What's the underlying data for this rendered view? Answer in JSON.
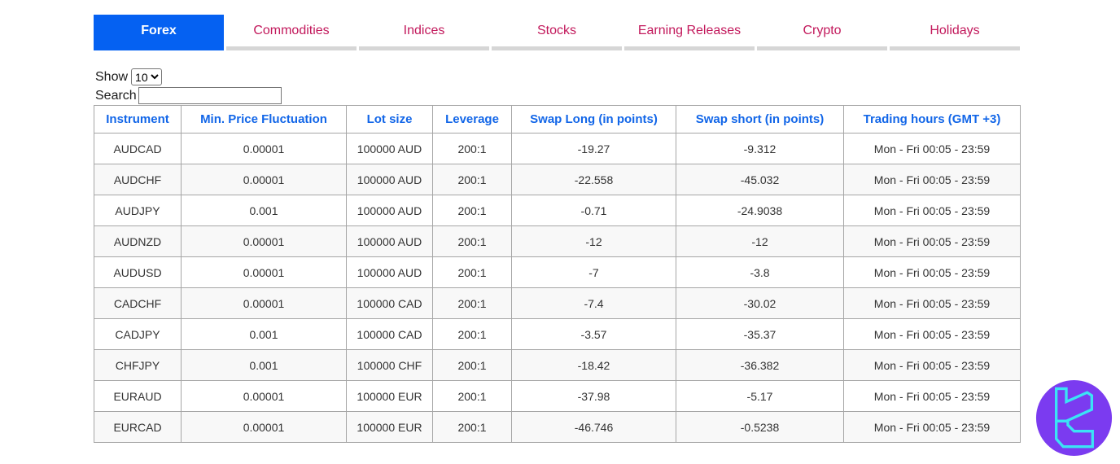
{
  "tabs": {
    "items": [
      {
        "label": "Forex",
        "active": true
      },
      {
        "label": "Commodities",
        "active": false
      },
      {
        "label": "Indices",
        "active": false
      },
      {
        "label": "Stocks",
        "active": false
      },
      {
        "label": "Earning Releases",
        "active": false
      },
      {
        "label": "Crypto",
        "active": false
      },
      {
        "label": "Holidays",
        "active": false
      }
    ]
  },
  "controls": {
    "show_label": "Show",
    "show_selected": "10",
    "search_label": "Search",
    "search_value": ""
  },
  "table": {
    "headers": [
      "Instrument",
      "Min. Price Fluctuation",
      "Lot size",
      "Leverage",
      "Swap Long (in points)",
      "Swap short (in points)",
      "Trading hours (GMT +3)"
    ],
    "rows": [
      [
        "AUDCAD",
        "0.00001",
        "100000 AUD",
        "200:1",
        "-19.27",
        "-9.312",
        "Mon - Fri 00:05 - 23:59"
      ],
      [
        "AUDCHF",
        "0.00001",
        "100000 AUD",
        "200:1",
        "-22.558",
        "-45.032",
        "Mon - Fri 00:05 - 23:59"
      ],
      [
        "AUDJPY",
        "0.001",
        "100000 AUD",
        "200:1",
        "-0.71",
        "-24.9038",
        "Mon - Fri 00:05 - 23:59"
      ],
      [
        "AUDNZD",
        "0.00001",
        "100000 AUD",
        "200:1",
        "-12",
        "-12",
        "Mon - Fri 00:05 - 23:59"
      ],
      [
        "AUDUSD",
        "0.00001",
        "100000 AUD",
        "200:1",
        "-7",
        "-3.8",
        "Mon - Fri 00:05 - 23:59"
      ],
      [
        "CADCHF",
        "0.00001",
        "100000 CAD",
        "200:1",
        "-7.4",
        "-30.02",
        "Mon - Fri 00:05 - 23:59"
      ],
      [
        "CADJPY",
        "0.001",
        "100000 CAD",
        "200:1",
        "-3.57",
        "-35.37",
        "Mon - Fri 00:05 - 23:59"
      ],
      [
        "CHFJPY",
        "0.001",
        "100000 CHF",
        "200:1",
        "-18.42",
        "-36.382",
        "Mon - Fri 00:05 - 23:59"
      ],
      [
        "EURAUD",
        "0.00001",
        "100000 EUR",
        "200:1",
        "-37.98",
        "-5.17",
        "Mon - Fri 00:05 - 23:59"
      ],
      [
        "EURCAD",
        "0.00001",
        "100000 EUR",
        "200:1",
        "-46.746",
        "-0.5238",
        "Mon - Fri 00:05 - 23:59"
      ]
    ]
  },
  "colors": {
    "active_tab_bg": "#0561f2",
    "tab_text": "#c2185b",
    "header_text": "#1266e8",
    "logo_circle": "#7b3bf0",
    "logo_glyph": "#3be3f5"
  }
}
